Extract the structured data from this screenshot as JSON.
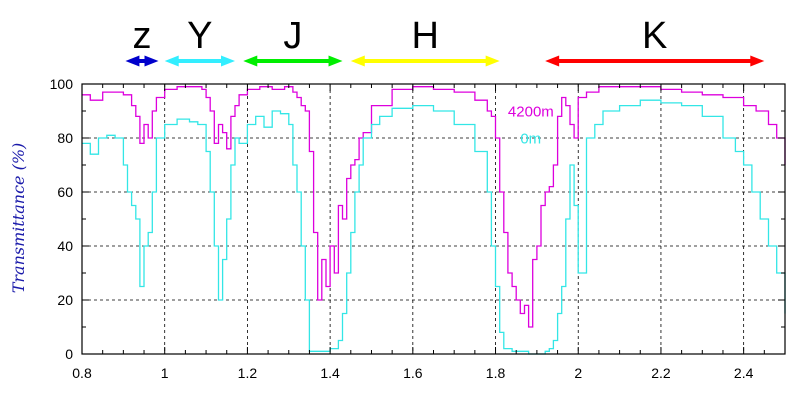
{
  "chart_data": {
    "type": "line",
    "ylabel": "Transmittance (%)",
    "xlim": [
      0.8,
      2.5
    ],
    "ylim": [
      0,
      100
    ],
    "grid": true,
    "x_ticks": [
      "0.8",
      "1",
      "1.2",
      "1.4",
      "1.6",
      "1.8",
      "2",
      "2.2",
      "2.4"
    ],
    "y_ticks": [
      "0",
      "20",
      "40",
      "60",
      "80",
      "100"
    ],
    "series": [
      {
        "name": "4200m",
        "color": "#dd00dd",
        "x": [
          0.8,
          0.82,
          0.85,
          0.88,
          0.9,
          0.92,
          0.93,
          0.94,
          0.95,
          0.96,
          0.97,
          0.98,
          1.0,
          1.03,
          1.06,
          1.09,
          1.1,
          1.11,
          1.12,
          1.13,
          1.14,
          1.15,
          1.16,
          1.17,
          1.18,
          1.2,
          1.23,
          1.26,
          1.29,
          1.31,
          1.32,
          1.33,
          1.34,
          1.35,
          1.36,
          1.37,
          1.38,
          1.39,
          1.4,
          1.41,
          1.42,
          1.43,
          1.44,
          1.45,
          1.46,
          1.47,
          1.48,
          1.5,
          1.55,
          1.6,
          1.65,
          1.7,
          1.75,
          1.78,
          1.79,
          1.8,
          1.81,
          1.82,
          1.83,
          1.84,
          1.85,
          1.86,
          1.87,
          1.88,
          1.89,
          1.9,
          1.91,
          1.92,
          1.93,
          1.94,
          1.95,
          1.96,
          1.97,
          1.98,
          1.99,
          2.0,
          2.02,
          2.05,
          2.1,
          2.15,
          2.2,
          2.25,
          2.3,
          2.35,
          2.4,
          2.43,
          2.46,
          2.48,
          2.5
        ],
        "y": [
          96,
          94,
          97,
          97,
          96,
          92,
          88,
          78,
          85,
          80,
          90,
          95,
          98,
          99,
          99,
          98,
          95,
          90,
          78,
          85,
          82,
          76,
          88,
          92,
          96,
          98,
          99,
          98,
          99,
          97,
          95,
          92,
          90,
          75,
          45,
          20,
          35,
          25,
          40,
          30,
          55,
          50,
          65,
          70,
          72,
          80,
          82,
          92,
          98,
          99,
          98,
          97,
          94,
          90,
          88,
          80,
          60,
          45,
          30,
          25,
          20,
          15,
          18,
          10,
          35,
          40,
          55,
          60,
          62,
          70,
          88,
          95,
          92,
          85,
          80,
          95,
          97,
          99,
          99,
          99,
          98,
          97,
          96,
          95,
          92,
          90,
          85,
          80,
          70
        ]
      },
      {
        "name": "0m",
        "color": "#33e6e6",
        "x": [
          0.8,
          0.82,
          0.84,
          0.86,
          0.88,
          0.9,
          0.91,
          0.92,
          0.93,
          0.94,
          0.95,
          0.96,
          0.97,
          0.98,
          1.0,
          1.03,
          1.06,
          1.08,
          1.1,
          1.11,
          1.12,
          1.13,
          1.14,
          1.15,
          1.16,
          1.17,
          1.18,
          1.2,
          1.22,
          1.24,
          1.26,
          1.28,
          1.3,
          1.31,
          1.32,
          1.33,
          1.34,
          1.35,
          1.36,
          1.38,
          1.4,
          1.42,
          1.43,
          1.44,
          1.45,
          1.46,
          1.47,
          1.48,
          1.5,
          1.52,
          1.55,
          1.6,
          1.65,
          1.7,
          1.75,
          1.78,
          1.79,
          1.8,
          1.81,
          1.82,
          1.84,
          1.86,
          1.88,
          1.9,
          1.92,
          1.93,
          1.94,
          1.95,
          1.96,
          1.97,
          1.98,
          1.99,
          2.0,
          2.02,
          2.04,
          2.06,
          2.1,
          2.15,
          2.2,
          2.25,
          2.3,
          2.35,
          2.38,
          2.4,
          2.42,
          2.44,
          2.46,
          2.48,
          2.5
        ],
        "y": [
          78,
          74,
          80,
          81,
          80,
          70,
          60,
          55,
          50,
          25,
          40,
          45,
          60,
          80,
          85,
          87,
          86,
          85,
          75,
          60,
          40,
          20,
          35,
          50,
          70,
          80,
          78,
          85,
          88,
          84,
          90,
          89,
          85,
          70,
          60,
          40,
          20,
          1,
          1,
          1,
          2,
          5,
          15,
          30,
          45,
          60,
          70,
          80,
          85,
          88,
          91,
          92,
          90,
          85,
          75,
          60,
          40,
          25,
          8,
          2,
          1,
          1,
          0,
          0,
          1,
          2,
          5,
          15,
          25,
          50,
          70,
          55,
          30,
          80,
          85,
          90,
          92,
          94,
          93,
          92,
          88,
          80,
          75,
          70,
          60,
          50,
          40,
          30,
          15
        ]
      }
    ],
    "bands": [
      {
        "label": "z",
        "x0": 0.905,
        "x1": 0.985,
        "color": "#0000cc"
      },
      {
        "label": "Y",
        "x0": 1.0,
        "x1": 1.17,
        "color": "#33eeff"
      },
      {
        "label": "J",
        "x0": 1.19,
        "x1": 1.43,
        "color": "#00ee00"
      },
      {
        "label": "H",
        "x0": 1.45,
        "x1": 1.81,
        "color": "#ffff00"
      },
      {
        "label": "K",
        "x0": 1.92,
        "x1": 2.45,
        "color": "#ff0000"
      }
    ],
    "series_labels": [
      {
        "text": "4200m",
        "x": 1.83,
        "y": 88,
        "color": "#dd00dd"
      },
      {
        "text": "0m",
        "x": 1.86,
        "y": 78,
        "color": "#33e6e6"
      }
    ]
  }
}
